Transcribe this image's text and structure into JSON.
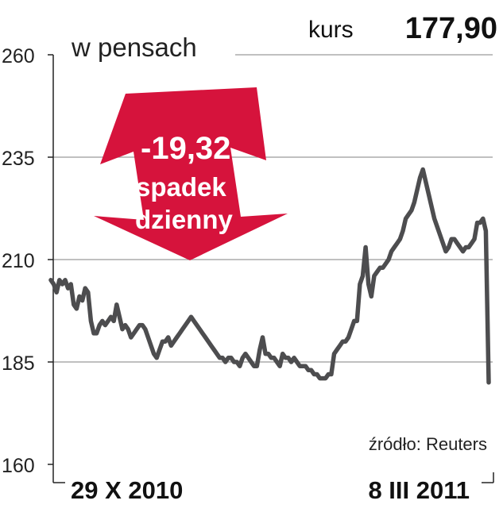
{
  "price": {
    "label": "kurs",
    "value": "177,90"
  },
  "callout": {
    "percent": "-19,32",
    "percent_sign": "%",
    "line1": "spadek",
    "line2": "dzienny",
    "color": "#d6133c"
  },
  "source": "źródło: Reuters",
  "chart_data": {
    "type": "line",
    "ylabel": "w pensach",
    "ylim": [
      160,
      260
    ],
    "yticks": [
      "260",
      "235",
      "210",
      "185",
      "160"
    ],
    "yticks_values": [
      260,
      235,
      210,
      185,
      160
    ],
    "x_labels": [
      "29 X 2010",
      "8 III 2011"
    ],
    "grid": true,
    "line_color": "#4d4d4f",
    "series": [
      {
        "values": [
          205,
          204,
          202,
          205,
          204,
          205,
          203,
          204,
          199,
          198,
          201,
          200,
          203,
          202,
          195,
          192,
          192,
          194,
          195,
          194,
          195,
          196,
          195,
          199,
          196,
          193,
          194,
          193,
          191,
          192,
          193,
          194,
          194,
          193,
          191,
          189,
          187,
          186,
          188,
          190,
          190,
          191,
          189,
          190,
          191,
          192,
          193,
          194,
          195,
          196,
          195,
          194,
          193,
          192,
          191,
          190,
          189,
          188,
          187,
          186,
          186,
          185,
          186,
          186,
          185,
          185,
          184,
          186,
          187,
          186,
          185,
          184,
          184,
          188,
          191,
          187,
          187,
          186,
          186,
          185,
          184,
          187,
          186,
          186,
          185,
          186,
          185,
          184,
          184,
          184,
          183,
          183,
          182,
          182,
          181,
          181,
          181,
          182,
          182,
          187,
          188,
          189,
          190,
          190,
          191,
          193,
          195,
          195,
          204,
          206,
          213,
          204,
          201,
          206,
          207,
          208,
          208,
          209,
          210,
          212,
          213,
          214,
          215,
          217,
          220,
          221,
          222,
          224,
          227,
          230,
          232,
          229,
          226,
          223,
          220,
          218,
          216,
          214,
          212,
          213,
          215,
          215,
          214,
          213,
          212,
          213,
          213,
          214,
          215,
          219,
          219,
          220,
          217,
          180
        ]
      }
    ]
  }
}
